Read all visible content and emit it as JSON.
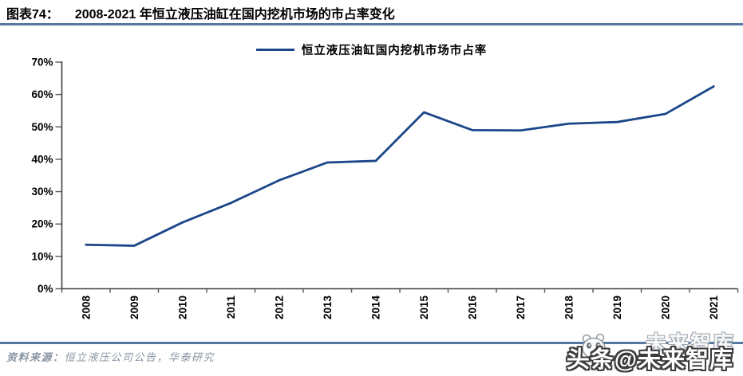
{
  "header": {
    "figure_label": "图表74：",
    "title": "2008-2021 年恒立液压油缸在国内挖机市场的市占率变化"
  },
  "footer": {
    "source_label": "资料来源：",
    "source_text": "恒立液压公司公告，华泰研究"
  },
  "watermark": {
    "ghost_text": "未来智库",
    "main_text": "头条@未来智库",
    "panda_icon": "panda-face-icon"
  },
  "colors": {
    "line": "#1b4689",
    "rule": "#54789f",
    "axis": "#404040",
    "tick": "#595959",
    "tick_label": "#000000",
    "source_text": "#8a96a3"
  },
  "chart_data": {
    "type": "line",
    "title": "2008-2021 年恒立液压油缸在国内挖机市场的市占率变化",
    "legend": "恒立液压油缸国内挖机市场市占率",
    "legend_position": "top-center",
    "grid": false,
    "categories": [
      "2008",
      "2009",
      "2010",
      "2011",
      "2012",
      "2013",
      "2014",
      "2015",
      "2016",
      "2017",
      "2018",
      "2019",
      "2020",
      "2021"
    ],
    "series": [
      {
        "name": "恒立液压油缸国内挖机市场市占率",
        "values": [
          13.6,
          13.3,
          20.5,
          26.5,
          33.5,
          39.0,
          39.5,
          54.5,
          49.0,
          48.9,
          51.0,
          51.5,
          54.0,
          62.5
        ]
      }
    ],
    "xlabel": "",
    "ylabel": "",
    "ylim": [
      0,
      70
    ],
    "y_ticks": [
      "0%",
      "10%",
      "20%",
      "30%",
      "40%",
      "50%",
      "60%",
      "70%"
    ],
    "x_tick_label_rotation": -90
  }
}
